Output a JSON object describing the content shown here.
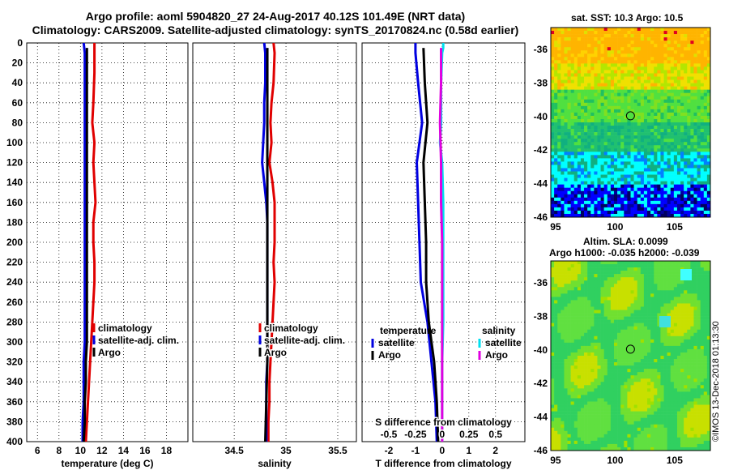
{
  "header": {
    "title_line1": "Argo profile: aoml 5904820_27 24-Aug-2017 40.12S 101.49E (NRT data)",
    "title_line2": "Climatology: CARS2009. Satellite-adjusted climatology: synTS_20170824.nc (0.58d earlier)"
  },
  "colors": {
    "climatology": "#e00000",
    "satellite": "#0000e0",
    "argo": "#000000",
    "sal_climatology": "#00e0f0",
    "sal_argo": "#e000e0"
  },
  "map_sst": {
    "title": "sat. SST: 10.3 Argo: 10.5",
    "x_ticks": [
      "95",
      "100",
      "105"
    ],
    "y_ticks": [
      "-36",
      "-38",
      "-40",
      "-42",
      "-44",
      "-46"
    ]
  },
  "map_sla": {
    "title_line1": "Altim. SLA: 0.0099",
    "title_line2": "Argo h1000: -0.035 h2000: -0.039",
    "x_ticks": [
      "95",
      "100",
      "105"
    ],
    "y_ticks": [
      "-36",
      "-38",
      "-40",
      "-42",
      "-44",
      "-46"
    ]
  },
  "stamp": "©IMOS 13-Dec-2018 01:13:30",
  "chart_data": [
    {
      "type": "line",
      "title": "",
      "xlabel": "temperature (deg C)",
      "ylabel": "",
      "xlim": [
        5,
        20
      ],
      "ylim": [
        400,
        0
      ],
      "x_ticks": [
        "6",
        "8",
        "10",
        "12",
        "14",
        "16",
        "18"
      ],
      "x_tick_values": [
        6,
        8,
        10,
        12,
        14,
        16,
        18
      ],
      "y_ticks": [
        "0",
        "20",
        "40",
        "60",
        "80",
        "100",
        "120",
        "140",
        "160",
        "180",
        "200",
        "220",
        "240",
        "260",
        "280",
        "300",
        "320",
        "340",
        "360",
        "380",
        "400"
      ],
      "y_tick_values": [
        0,
        20,
        40,
        60,
        80,
        100,
        120,
        140,
        160,
        180,
        200,
        220,
        240,
        260,
        280,
        300,
        320,
        340,
        360,
        380,
        400
      ],
      "legend": [
        "climatology",
        "satellite-adj. clim.",
        "Argo"
      ],
      "legend_position": "bottom-right",
      "series": [
        {
          "name": "climatology",
          "depth": [
            0,
            10,
            30,
            60,
            80,
            100,
            120,
            140,
            160,
            180,
            200,
            220,
            240,
            260,
            280,
            300,
            320,
            340,
            360,
            380,
            400
          ],
          "values": [
            11.3,
            11.3,
            11.3,
            11.2,
            11.1,
            11.3,
            11.2,
            11.3,
            11.4,
            11.2,
            11.2,
            11.3,
            11.3,
            11.2,
            11.1,
            11.0,
            10.9,
            10.8,
            10.7,
            10.6,
            10.5
          ]
        },
        {
          "name": "satellite-adj. clim.",
          "depth": [
            0,
            10,
            30,
            60,
            80,
            100,
            120,
            140,
            160,
            180,
            200,
            220,
            240,
            260,
            280,
            300,
            320,
            340,
            360,
            380,
            400
          ],
          "values": [
            10.3,
            10.4,
            10.4,
            10.4,
            10.4,
            10.4,
            10.4,
            10.4,
            10.4,
            10.4,
            10.4,
            10.4,
            10.4,
            10.4,
            10.4,
            10.4,
            10.3,
            10.3,
            10.3,
            10.2,
            10.2
          ]
        },
        {
          "name": "Argo",
          "depth": [
            5,
            30,
            60,
            80,
            100,
            120,
            140,
            160,
            180,
            200,
            220,
            240,
            260,
            280,
            300,
            320,
            340,
            360,
            380,
            400
          ],
          "values": [
            10.6,
            10.6,
            10.6,
            10.6,
            10.6,
            10.6,
            10.6,
            10.6,
            10.6,
            10.6,
            10.6,
            10.6,
            10.6,
            10.6,
            10.6,
            10.5,
            10.5,
            10.4,
            10.4,
            10.3
          ]
        }
      ]
    },
    {
      "type": "line",
      "title": "",
      "xlabel": "salinity",
      "ylabel": "",
      "xlim": [
        34.1,
        35.68
      ],
      "ylim": [
        400,
        0
      ],
      "x_ticks": [
        "34.5",
        "35",
        "35.5"
      ],
      "x_tick_values": [
        34.5,
        35,
        35.5
      ],
      "legend": [
        "climatology",
        "satellite-adj. clim.",
        "Argo"
      ],
      "legend_position": "bottom-right",
      "series": [
        {
          "name": "climatology",
          "depth": [
            0,
            10,
            40,
            60,
            80,
            100,
            120,
            140,
            160,
            180,
            200,
            220,
            240,
            260,
            280,
            300,
            320,
            340,
            360,
            380,
            400
          ],
          "values": [
            34.88,
            34.89,
            34.88,
            34.86,
            34.85,
            34.86,
            34.84,
            34.87,
            34.89,
            34.89,
            34.89,
            34.88,
            34.89,
            34.88,
            34.87,
            34.86,
            34.85,
            34.84,
            34.84,
            34.83,
            34.83
          ]
        },
        {
          "name": "satellite-adj. clim.",
          "depth": [
            0,
            10,
            40,
            60,
            80,
            100,
            120,
            140,
            160,
            180,
            200,
            220,
            240,
            260,
            280,
            300,
            320,
            340,
            360,
            380,
            400
          ],
          "values": [
            34.79,
            34.8,
            34.8,
            34.79,
            34.79,
            34.78,
            34.77,
            34.79,
            34.81,
            34.82,
            34.82,
            34.82,
            34.82,
            34.82,
            34.82,
            34.82,
            34.82,
            34.81,
            34.81,
            34.81,
            34.81
          ]
        },
        {
          "name": "Argo",
          "depth": [
            5,
            40,
            80,
            120,
            160,
            200,
            240,
            280,
            320,
            360,
            400
          ],
          "values": [
            34.82,
            34.82,
            34.82,
            34.82,
            34.82,
            34.82,
            34.82,
            34.82,
            34.82,
            34.81,
            34.8
          ]
        }
      ]
    },
    {
      "type": "line",
      "title": "",
      "xlabel": "T difference from climatology",
      "x2label": "S difference from climatology",
      "ylabel": "",
      "xlim": [
        -3,
        3.1
      ],
      "ylim": [
        400,
        0
      ],
      "x_ticks": [
        "-2",
        "-1",
        "0",
        "1",
        "2"
      ],
      "x_tick_values": [
        -2,
        -1,
        0,
        1,
        2
      ],
      "x2_ticks": [
        "-0.5",
        "-0.25",
        "0",
        "0.25",
        "0.5"
      ],
      "x2_tick_values": [
        -0.5,
        -0.25,
        0,
        0.25,
        0.5
      ],
      "legend_temperature": {
        "title": "temperature",
        "items": [
          "satellite",
          "Argo"
        ]
      },
      "legend_salinity": {
        "title": "salinity",
        "items": [
          "satellite",
          "Argo"
        ]
      },
      "series": [
        {
          "name": "temperature satellite",
          "depth": [
            0,
            10,
            40,
            80,
            120,
            160,
            200,
            240,
            280,
            320,
            360,
            400
          ],
          "values": [
            -1.0,
            -1.0,
            -0.9,
            -0.75,
            -0.95,
            -0.9,
            -0.85,
            -0.8,
            -0.55,
            -0.4,
            -0.25,
            -0.2
          ]
        },
        {
          "name": "temperature Argo",
          "depth": [
            5,
            40,
            80,
            120,
            160,
            200,
            240,
            280,
            320,
            360,
            400
          ],
          "values": [
            -0.7,
            -0.65,
            -0.55,
            -0.7,
            -0.65,
            -0.6,
            -0.6,
            -0.5,
            -0.3,
            -0.2,
            -0.15
          ]
        },
        {
          "name": "salinity satellite",
          "depth": [
            0,
            5,
            10,
            40,
            80,
            100,
            120,
            160,
            200,
            240,
            280,
            320,
            360,
            400
          ],
          "values": [
            0.01,
            0.01,
            0.0,
            -0.01,
            -0.01,
            -0.02,
            0.0,
            0.01,
            0.01,
            0.01,
            0.01,
            0.0,
            0.0,
            0.0
          ]
        },
        {
          "name": "salinity Argo",
          "depth": [
            5,
            40,
            80,
            120,
            160,
            200,
            240,
            280,
            320,
            360,
            400
          ],
          "values": [
            -0.01,
            -0.01,
            -0.02,
            -0.01,
            -0.01,
            0.0,
            0.0,
            0.0,
            0.0,
            0.0,
            0.0
          ]
        }
      ]
    }
  ]
}
